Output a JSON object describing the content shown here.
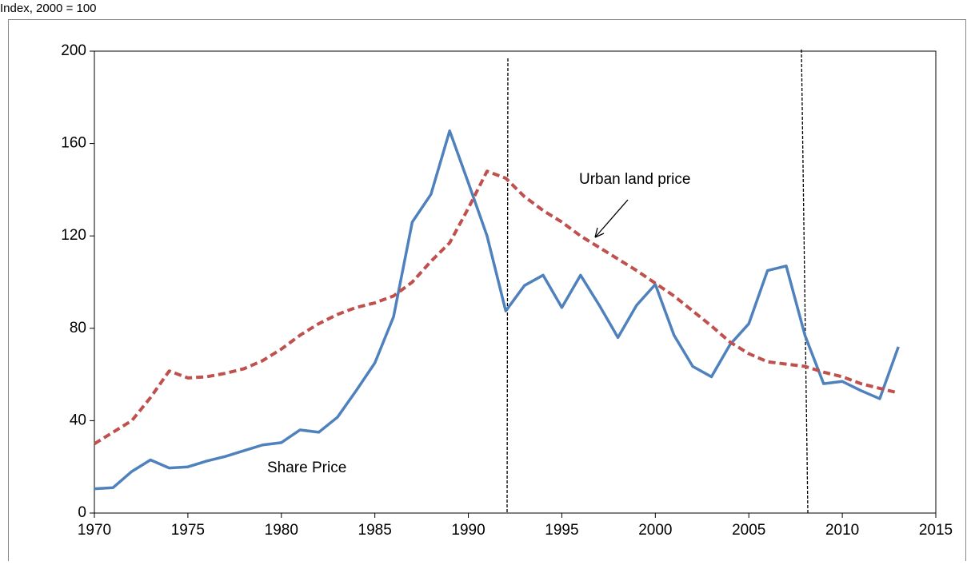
{
  "chart_data": {
    "type": "line",
    "y_label": "Index, 2000 = 100",
    "annotations": [
      "Urban land price",
      "Share Price"
    ],
    "x": [
      1970,
      1971,
      1972,
      1973,
      1974,
      1975,
      1976,
      1977,
      1978,
      1979,
      1980,
      1981,
      1982,
      1983,
      1984,
      1985,
      1986,
      1987,
      1988,
      1989,
      1990,
      1991,
      1992,
      1993,
      1994,
      1995,
      1996,
      1997,
      1998,
      1999,
      2000,
      2001,
      2002,
      2003,
      2004,
      2005,
      2006,
      2007,
      2008,
      2009,
      2010,
      2011,
      2012,
      2013
    ],
    "series": [
      {
        "name": "Share Price",
        "color": "#4f81bd",
        "dash": false,
        "values": [
          10.5,
          11,
          18,
          23,
          19.5,
          20,
          22.5,
          24.5,
          27,
          29.5,
          30.5,
          36,
          35,
          41.5,
          53,
          65,
          85,
          126,
          138,
          165.5,
          143,
          120,
          87.5,
          98.5,
          103,
          89,
          103,
          90,
          76,
          90,
          99,
          77,
          63.5,
          59,
          73,
          82,
          105,
          107,
          77,
          56,
          57,
          53,
          49.5,
          72
        ]
      },
      {
        "name": "Urban land price",
        "color": "#c0504d",
        "dash": true,
        "values": [
          30,
          35,
          40,
          50,
          61.5,
          58.5,
          59,
          60.5,
          62.5,
          66,
          71,
          77,
          82,
          86,
          89,
          91,
          94,
          100,
          109,
          117,
          132,
          148,
          145,
          137,
          131,
          126,
          120,
          115,
          110,
          105,
          99.5,
          94,
          87.5,
          81,
          74,
          69,
          65.5,
          64.5,
          63.5,
          61,
          59,
          56,
          54,
          52
        ]
      }
    ],
    "xlim": [
      1970,
      2015
    ],
    "xticks": [
      1970,
      1975,
      1980,
      1985,
      1990,
      1995,
      2000,
      2005,
      2010,
      2015
    ],
    "ylim": [
      0,
      200
    ],
    "yticks": [
      0,
      40,
      80,
      120,
      160,
      200
    ],
    "grid": false
  }
}
